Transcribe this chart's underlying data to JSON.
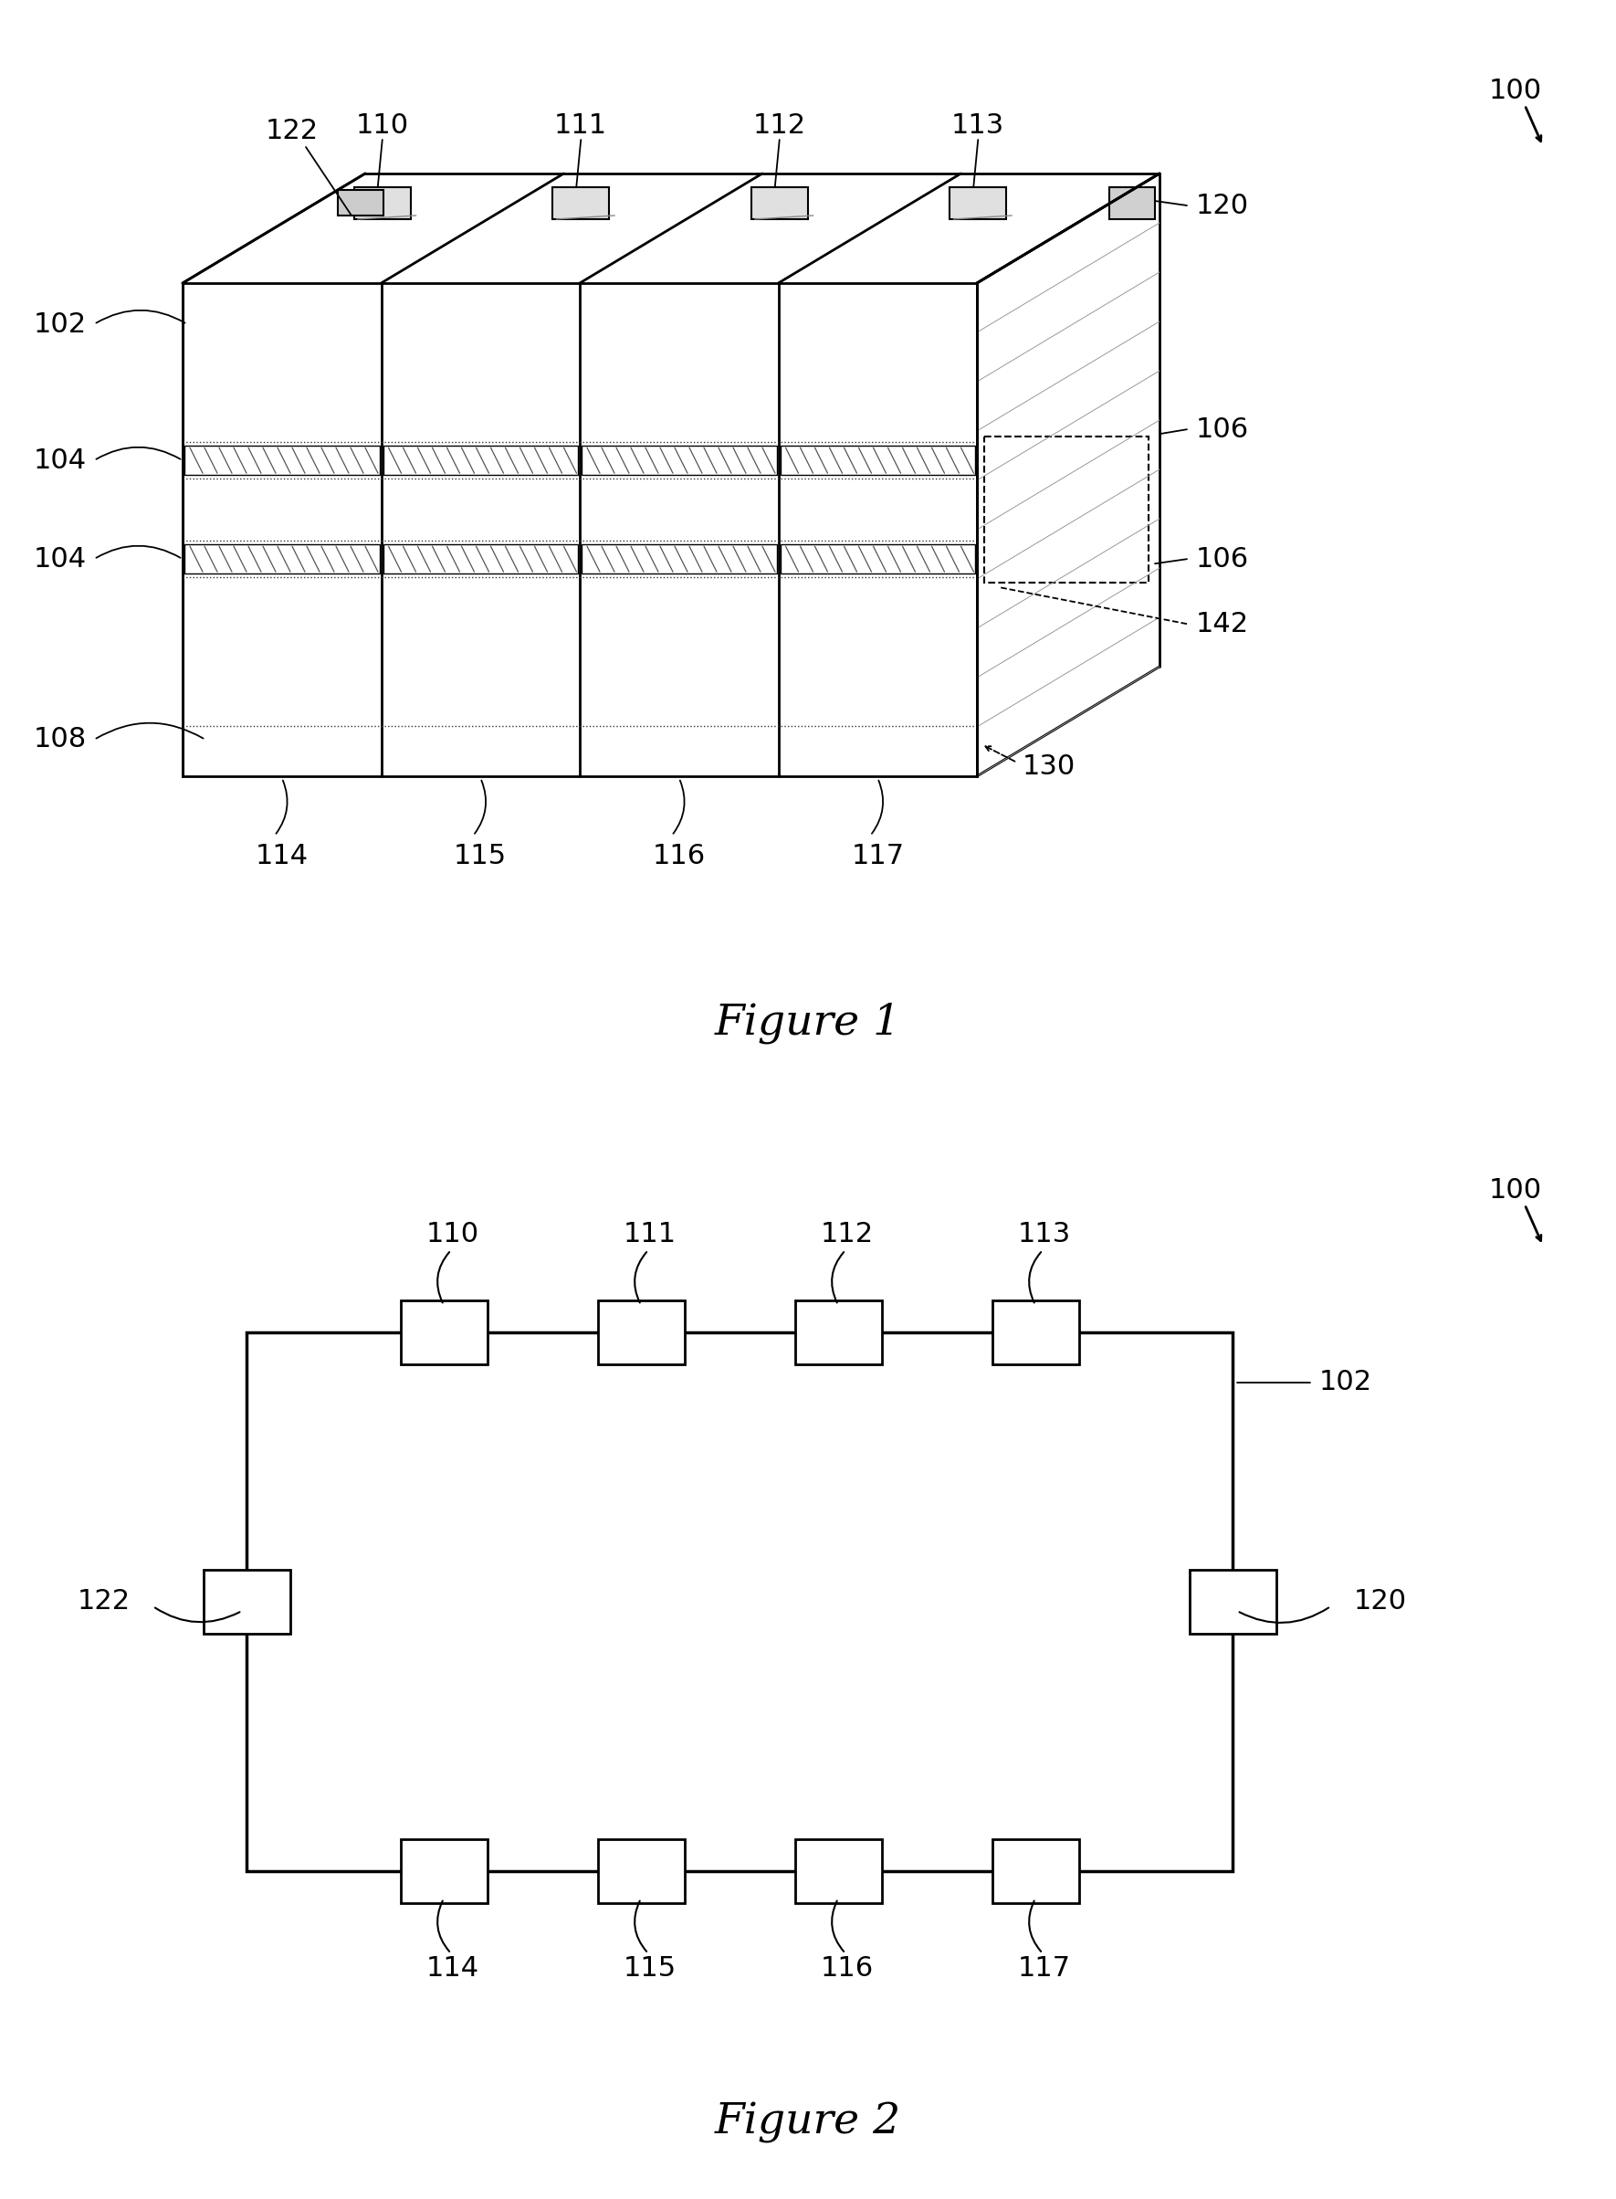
{
  "fig_width": 17.7,
  "fig_height": 24.08,
  "bg_color": "#ffffff",
  "fig1_title": "Figure 1",
  "fig2_title": "Figure 2",
  "line_color": "#000000",
  "label_color": "#000000"
}
